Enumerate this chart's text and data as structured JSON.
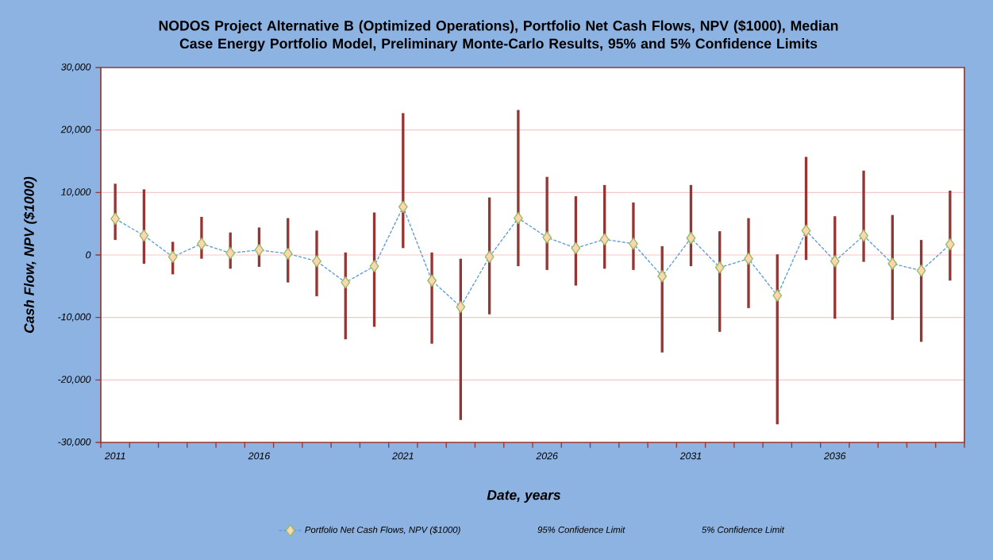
{
  "chart_data": {
    "type": "line",
    "title": "NODOS Project Alternative B (Optimized Operations), Portfolio Net Cash Flows, NPV ($1000), Median Case Energy Portfolio Model, Preliminary Monte-Carlo Results, 95% and 5% Confidence Limits",
    "xlabel": "Date, years",
    "ylabel": "Cash Flow, NPV ($1000)",
    "categories": [
      "2011",
      null,
      null,
      null,
      null,
      "2016",
      null,
      null,
      null,
      null,
      "2021",
      null,
      null,
      null,
      null,
      "2026",
      null,
      null,
      null,
      null,
      "2031",
      null,
      null,
      null,
      null,
      "2036",
      null,
      null,
      null,
      null
    ],
    "series": [
      {
        "name": "Portfolio Net Cash Flows, NPV ($1000)",
        "color": "#5b9bd5",
        "values": [
          5800,
          3100,
          -300,
          1800,
          300,
          800,
          200,
          -1000,
          -4400,
          -1800,
          7700,
          -4100,
          -8300,
          -300,
          5900,
          2800,
          1100,
          2500,
          1800,
          -3400,
          2700,
          -2000,
          -600,
          -6500,
          3900,
          -1000,
          3100,
          -1400,
          -2500,
          1700
        ],
        "errors": [
          [
            2400,
            11400
          ],
          [
            -1400,
            10500
          ],
          [
            -3100,
            2100
          ],
          [
            -600,
            6100
          ],
          [
            -2200,
            3600
          ],
          [
            -1900,
            4400
          ],
          [
            -4400,
            5900
          ],
          [
            -6600,
            3900
          ],
          [
            -13500,
            400
          ],
          [
            -11500,
            6800
          ],
          [
            1100,
            22700
          ],
          [
            -14200,
            400
          ],
          [
            -26400,
            -600
          ],
          [
            -9500,
            9200
          ],
          [
            -1800,
            23200
          ],
          [
            -2400,
            12500
          ],
          [
            -4900,
            9400
          ],
          [
            -2200,
            11200
          ],
          [
            -2400,
            8400
          ],
          [
            -15600,
            1400
          ],
          [
            -1800,
            11200
          ],
          [
            -12300,
            3800
          ],
          [
            -8500,
            5900
          ],
          [
            -27100,
            100
          ],
          [
            -800,
            15700
          ],
          [
            -10200,
            6200
          ],
          [
            -1100,
            13500
          ],
          [
            -10400,
            6400
          ],
          [
            -13900,
            2400
          ],
          [
            -4100,
            10300
          ]
        ]
      }
    ],
    "annotations": [
      "95% Confidence Limit",
      "5% Confidence Limit"
    ],
    "ylim": [
      -30000,
      30000
    ],
    "yticks": [
      {
        "value": -30000,
        "label": "-30,000"
      },
      {
        "value": -20000,
        "label": "-20,000"
      },
      {
        "value": -10000,
        "label": "-10,000"
      },
      0,
      {
        "value": 10000,
        "label": "10,000"
      },
      {
        "value": 20000,
        "label": "20,000"
      },
      {
        "value": 30000,
        "label": "30,000"
      }
    ],
    "grid": "y",
    "legend": "bottom",
    "marker": "diamond",
    "line_style": "dashed"
  }
}
